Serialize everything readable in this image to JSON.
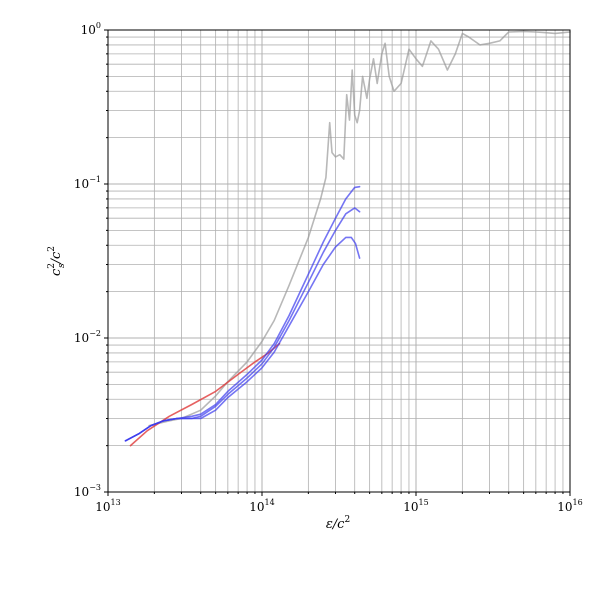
{
  "chart_data": {
    "type": "line",
    "x_scale": "log",
    "y_scale": "log",
    "xlim": [
      10000000000000.0,
      1e+16
    ],
    "ylim": [
      0.001,
      1
    ],
    "grid": "major-and-minor",
    "xlabel_main": "ε/c",
    "xlabel_sup": "2",
    "ylabel_base": "c",
    "ylabel_sup": "2",
    "ylabel_sub": "s",
    "ylabel_den": "/c",
    "ylabel_den_sup": "2",
    "x_ticks": [
      {
        "base": "10",
        "exp": "13",
        "value": 10000000000000.0
      },
      {
        "base": "10",
        "exp": "14",
        "value": 100000000000000.0
      },
      {
        "base": "10",
        "exp": "15",
        "value": 1000000000000000.0
      },
      {
        "base": "10",
        "exp": "16",
        "value": 1e+16
      }
    ],
    "y_ticks": [
      {
        "base": "10",
        "exp": "−3",
        "value": 0.001
      },
      {
        "base": "10",
        "exp": "−2",
        "value": 0.01
      },
      {
        "base": "10",
        "exp": "−1",
        "value": 0.1
      },
      {
        "base": "10",
        "exp": "0",
        "value": 1
      }
    ],
    "series": [
      {
        "color": "#9a9a9a",
        "opacity": 0.7,
        "x": [
          18500000000000.0,
          25000000000000.0,
          30000000000000.0,
          40000000000000.0,
          50000000000000.0,
          60000000000000.0,
          80000000000000.0,
          100000000000000.0,
          120000000000000.0,
          150000000000000.0,
          200000000000000.0,
          240000000000000.0,
          260000000000000.0,
          275000000000000.0,
          285000000000000.0,
          300000000000000.0,
          320000000000000.0,
          340000000000000.0,
          355000000000000.0,
          370000000000000.0,
          385000000000000.0,
          400000000000000.0,
          415000000000000.0,
          430000000000000.0,
          450000000000000.0,
          480000000000000.0,
          500000000000000.0,
          530000000000000.0,
          560000000000000.0,
          600000000000000.0,
          630000000000000.0,
          670000000000000.0,
          720000000000000.0,
          800000000000000.0,
          900000000000000.0,
          1000000000000000.0,
          1100000000000000.0,
          1250000000000000.0,
          1400000000000000.0,
          1600000000000000.0,
          1800000000000000.0,
          2000000000000000.0,
          2200000000000000.0,
          2600000000000000.0,
          3000000000000000.0,
          3500000000000000.0,
          4000000000000000.0,
          5000000000000000.0,
          6000000000000000.0,
          7000000000000000.0,
          8000000000000000.0,
          9000000000000000.0,
          1e+16
        ],
        "y": [
          0.0027,
          0.0029,
          0.003,
          0.0034,
          0.0042,
          0.0052,
          0.007,
          0.0095,
          0.013,
          0.022,
          0.045,
          0.08,
          0.11,
          0.25,
          0.16,
          0.15,
          0.155,
          0.145,
          0.38,
          0.26,
          0.55,
          0.28,
          0.25,
          0.3,
          0.5,
          0.36,
          0.48,
          0.65,
          0.45,
          0.7,
          0.82,
          0.5,
          0.4,
          0.45,
          0.75,
          0.65,
          0.58,
          0.85,
          0.75,
          0.55,
          0.7,
          0.95,
          0.9,
          0.8,
          0.82,
          0.85,
          0.97,
          0.98,
          0.97,
          0.96,
          0.95,
          0.96,
          0.97
        ]
      },
      {
        "color": "#e03a3a",
        "opacity": 0.8,
        "x": [
          14000000000000.0,
          18000000000000.0,
          25000000000000.0,
          35000000000000.0,
          50000000000000.0,
          70000000000000.0,
          90000000000000.0,
          110000000000000.0,
          130000000000000.0
        ],
        "y": [
          0.002,
          0.0025,
          0.0031,
          0.0037,
          0.0045,
          0.0058,
          0.007,
          0.008,
          0.0092
        ]
      },
      {
        "color": "#3a3aee",
        "opacity": 0.7,
        "x": [
          13000000000000.0,
          16000000000000.0,
          19000000000000.0,
          23000000000000.0,
          28000000000000.0,
          35000000000000.0,
          40000000000000.0,
          50000000000000.0,
          60000000000000.0,
          80000000000000.0,
          100000000000000.0,
          120000000000000.0,
          150000000000000.0,
          200000000000000.0,
          250000000000000.0,
          300000000000000.0,
          350000000000000.0,
          400000000000000.0,
          430000000000000.0
        ],
        "y": [
          0.00215,
          0.0024,
          0.0027,
          0.0029,
          0.003,
          0.0031,
          0.0032,
          0.0037,
          0.0045,
          0.0058,
          0.0072,
          0.0092,
          0.014,
          0.026,
          0.042,
          0.06,
          0.08,
          0.095,
          0.096
        ]
      },
      {
        "color": "#3a3aee",
        "opacity": 0.7,
        "x": [
          13000000000000.0,
          16000000000000.0,
          19000000000000.0,
          23000000000000.0,
          28000000000000.0,
          35000000000000.0,
          40000000000000.0,
          50000000000000.0,
          60000000000000.0,
          80000000000000.0,
          100000000000000.0,
          120000000000000.0,
          150000000000000.0,
          200000000000000.0,
          250000000000000.0,
          300000000000000.0,
          350000000000000.0,
          400000000000000.0,
          430000000000000.0
        ],
        "y": [
          0.00215,
          0.0024,
          0.0027,
          0.0029,
          0.003,
          0.003,
          0.0031,
          0.0036,
          0.0043,
          0.0055,
          0.0068,
          0.0087,
          0.013,
          0.023,
          0.036,
          0.05,
          0.064,
          0.07,
          0.066
        ]
      },
      {
        "color": "#3a3aee",
        "opacity": 0.7,
        "x": [
          13000000000000.0,
          16000000000000.0,
          19000000000000.0,
          23000000000000.0,
          28000000000000.0,
          35000000000000.0,
          40000000000000.0,
          50000000000000.0,
          60000000000000.0,
          80000000000000.0,
          100000000000000.0,
          120000000000000.0,
          150000000000000.0,
          200000000000000.0,
          250000000000000.0,
          300000000000000.0,
          350000000000000.0,
          380000000000000.0,
          405000000000000.0,
          430000000000000.0
        ],
        "y": [
          0.00215,
          0.0024,
          0.0027,
          0.0029,
          0.003,
          0.003,
          0.003,
          0.0034,
          0.0041,
          0.0052,
          0.0064,
          0.0081,
          0.012,
          0.02,
          0.03,
          0.039,
          0.045,
          0.045,
          0.041,
          0.033
        ]
      }
    ]
  }
}
